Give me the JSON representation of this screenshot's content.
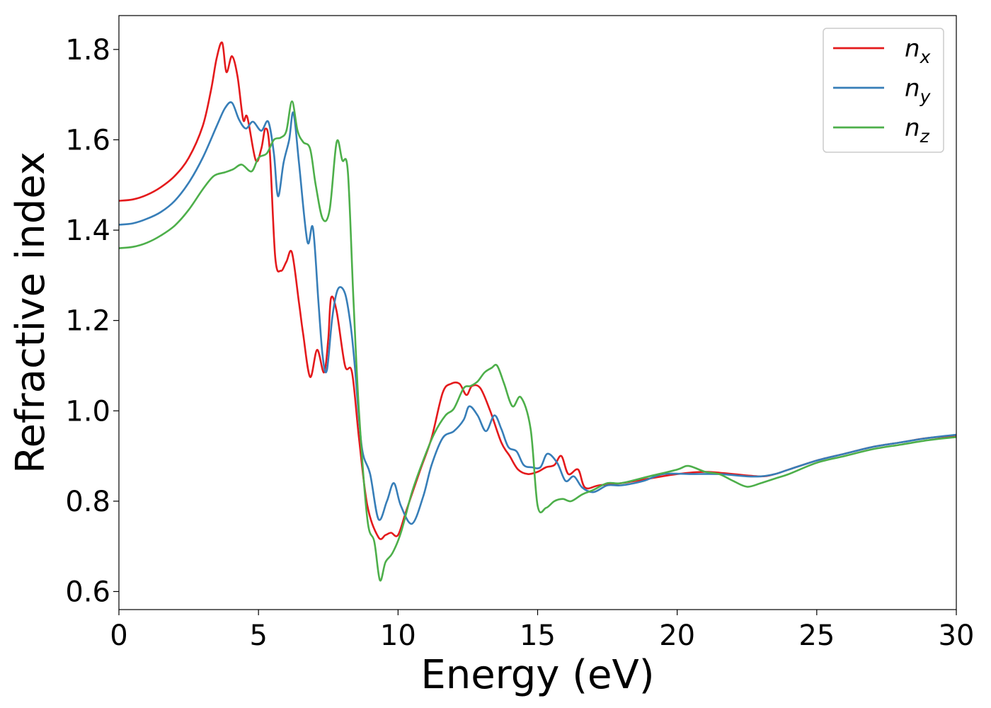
{
  "chart_data": {
    "type": "line",
    "xlabel": "Energy (eV)",
    "ylabel": "Refractive index",
    "xlim": [
      0,
      30
    ],
    "ylim": [
      0.56,
      1.875
    ],
    "xticks": [
      0,
      5,
      10,
      15,
      20,
      25,
      30
    ],
    "yticks": [
      0.6,
      0.8,
      1.0,
      1.2,
      1.4,
      1.6,
      1.8
    ],
    "grid": false,
    "legend_position": "top-right",
    "series": [
      {
        "name": "n_x",
        "label_base": "n",
        "label_sub": "x",
        "color": "#e41a1c",
        "points": [
          [
            0,
            1.465
          ],
          [
            0.5,
            1.468
          ],
          [
            1,
            1.478
          ],
          [
            1.5,
            1.495
          ],
          [
            2,
            1.52
          ],
          [
            2.5,
            1.56
          ],
          [
            3,
            1.63
          ],
          [
            3.3,
            1.71
          ],
          [
            3.5,
            1.78
          ],
          [
            3.7,
            1.815
          ],
          [
            3.85,
            1.75
          ],
          [
            4.05,
            1.785
          ],
          [
            4.25,
            1.74
          ],
          [
            4.45,
            1.645
          ],
          [
            4.6,
            1.65
          ],
          [
            4.9,
            1.555
          ],
          [
            5.1,
            1.58
          ],
          [
            5.25,
            1.625
          ],
          [
            5.4,
            1.58
          ],
          [
            5.6,
            1.34
          ],
          [
            5.8,
            1.31
          ],
          [
            6.0,
            1.33
          ],
          [
            6.2,
            1.35
          ],
          [
            6.45,
            1.24
          ],
          [
            6.6,
            1.17
          ],
          [
            6.85,
            1.075
          ],
          [
            7.1,
            1.135
          ],
          [
            7.35,
            1.085
          ],
          [
            7.5,
            1.16
          ],
          [
            7.6,
            1.25
          ],
          [
            7.8,
            1.22
          ],
          [
            8.1,
            1.1
          ],
          [
            8.35,
            1.085
          ],
          [
            8.6,
            0.94
          ],
          [
            8.9,
            0.79
          ],
          [
            9.3,
            0.72
          ],
          [
            9.55,
            0.725
          ],
          [
            9.75,
            0.73
          ],
          [
            10.0,
            0.725
          ],
          [
            10.3,
            0.78
          ],
          [
            10.8,
            0.87
          ],
          [
            11.2,
            0.94
          ],
          [
            11.6,
            1.04
          ],
          [
            11.9,
            1.06
          ],
          [
            12.2,
            1.06
          ],
          [
            12.45,
            1.035
          ],
          [
            12.65,
            1.055
          ],
          [
            12.95,
            1.05
          ],
          [
            13.3,
            1.0
          ],
          [
            13.7,
            0.93
          ],
          [
            14.0,
            0.9
          ],
          [
            14.3,
            0.87
          ],
          [
            14.65,
            0.86
          ],
          [
            15.0,
            0.865
          ],
          [
            15.3,
            0.875
          ],
          [
            15.6,
            0.88
          ],
          [
            15.85,
            0.9
          ],
          [
            16.1,
            0.86
          ],
          [
            16.45,
            0.87
          ],
          [
            16.7,
            0.83
          ],
          [
            17.2,
            0.835
          ],
          [
            18.0,
            0.84
          ],
          [
            19.0,
            0.85
          ],
          [
            20.0,
            0.86
          ],
          [
            21.0,
            0.865
          ],
          [
            22.0,
            0.86
          ],
          [
            23.0,
            0.855
          ],
          [
            23.5,
            0.86
          ],
          [
            24.0,
            0.87
          ],
          [
            25.0,
            0.89
          ],
          [
            26.0,
            0.905
          ],
          [
            27.0,
            0.92
          ],
          [
            28.0,
            0.93
          ],
          [
            29.0,
            0.94
          ],
          [
            30.0,
            0.945
          ]
        ]
      },
      {
        "name": "n_y",
        "label_base": "n",
        "label_sub": "y",
        "color": "#377eb8",
        "points": [
          [
            0,
            1.412
          ],
          [
            0.5,
            1.415
          ],
          [
            1,
            1.425
          ],
          [
            1.5,
            1.44
          ],
          [
            2,
            1.465
          ],
          [
            2.5,
            1.505
          ],
          [
            3,
            1.56
          ],
          [
            3.5,
            1.63
          ],
          [
            3.8,
            1.67
          ],
          [
            4.05,
            1.682
          ],
          [
            4.3,
            1.645
          ],
          [
            4.55,
            1.625
          ],
          [
            4.8,
            1.64
          ],
          [
            5.1,
            1.62
          ],
          [
            5.35,
            1.64
          ],
          [
            5.55,
            1.57
          ],
          [
            5.7,
            1.475
          ],
          [
            5.9,
            1.55
          ],
          [
            6.1,
            1.6
          ],
          [
            6.25,
            1.66
          ],
          [
            6.45,
            1.55
          ],
          [
            6.75,
            1.375
          ],
          [
            6.95,
            1.405
          ],
          [
            7.15,
            1.24
          ],
          [
            7.3,
            1.12
          ],
          [
            7.45,
            1.09
          ],
          [
            7.65,
            1.21
          ],
          [
            7.85,
            1.27
          ],
          [
            8.1,
            1.26
          ],
          [
            8.3,
            1.19
          ],
          [
            8.45,
            1.1
          ],
          [
            8.7,
            0.92
          ],
          [
            9.0,
            0.86
          ],
          [
            9.3,
            0.76
          ],
          [
            9.6,
            0.8
          ],
          [
            9.85,
            0.84
          ],
          [
            10.1,
            0.79
          ],
          [
            10.5,
            0.75
          ],
          [
            10.9,
            0.81
          ],
          [
            11.2,
            0.88
          ],
          [
            11.6,
            0.94
          ],
          [
            12.0,
            0.955
          ],
          [
            12.35,
            0.98
          ],
          [
            12.55,
            1.01
          ],
          [
            12.85,
            0.99
          ],
          [
            13.15,
            0.955
          ],
          [
            13.45,
            0.99
          ],
          [
            13.7,
            0.96
          ],
          [
            13.95,
            0.92
          ],
          [
            14.25,
            0.91
          ],
          [
            14.5,
            0.88
          ],
          [
            14.8,
            0.875
          ],
          [
            15.1,
            0.875
          ],
          [
            15.35,
            0.905
          ],
          [
            15.7,
            0.885
          ],
          [
            16.0,
            0.845
          ],
          [
            16.3,
            0.855
          ],
          [
            16.6,
            0.83
          ],
          [
            17.0,
            0.82
          ],
          [
            17.5,
            0.835
          ],
          [
            18.0,
            0.835
          ],
          [
            18.8,
            0.845
          ],
          [
            19.5,
            0.86
          ],
          [
            20.5,
            0.86
          ],
          [
            21.5,
            0.86
          ],
          [
            22.5,
            0.855
          ],
          [
            23.0,
            0.855
          ],
          [
            23.5,
            0.86
          ],
          [
            24.0,
            0.87
          ],
          [
            25.0,
            0.89
          ],
          [
            26.0,
            0.905
          ],
          [
            27.0,
            0.92
          ],
          [
            28.0,
            0.93
          ],
          [
            29.0,
            0.94
          ],
          [
            30.0,
            0.947
          ]
        ]
      },
      {
        "name": "n_z",
        "label_base": "n",
        "label_sub": "z",
        "color": "#4daf4a",
        "points": [
          [
            0,
            1.36
          ],
          [
            0.5,
            1.363
          ],
          [
            1,
            1.372
          ],
          [
            1.5,
            1.388
          ],
          [
            2,
            1.41
          ],
          [
            2.5,
            1.445
          ],
          [
            3,
            1.49
          ],
          [
            3.4,
            1.52
          ],
          [
            3.8,
            1.528
          ],
          [
            4.1,
            1.535
          ],
          [
            4.4,
            1.545
          ],
          [
            4.75,
            1.53
          ],
          [
            5.0,
            1.56
          ],
          [
            5.3,
            1.57
          ],
          [
            5.55,
            1.6
          ],
          [
            5.8,
            1.605
          ],
          [
            6.0,
            1.62
          ],
          [
            6.2,
            1.685
          ],
          [
            6.4,
            1.62
          ],
          [
            6.6,
            1.595
          ],
          [
            6.85,
            1.58
          ],
          [
            7.05,
            1.5
          ],
          [
            7.3,
            1.425
          ],
          [
            7.55,
            1.445
          ],
          [
            7.8,
            1.595
          ],
          [
            8.0,
            1.555
          ],
          [
            8.2,
            1.53
          ],
          [
            8.4,
            1.25
          ],
          [
            8.6,
            1.0
          ],
          [
            8.9,
            0.76
          ],
          [
            9.15,
            0.71
          ],
          [
            9.35,
            0.625
          ],
          [
            9.55,
            0.665
          ],
          [
            9.8,
            0.685
          ],
          [
            10.1,
            0.73
          ],
          [
            10.5,
            0.82
          ],
          [
            10.9,
            0.89
          ],
          [
            11.3,
            0.95
          ],
          [
            11.7,
            0.99
          ],
          [
            12.0,
            1.005
          ],
          [
            12.35,
            1.05
          ],
          [
            12.6,
            1.055
          ],
          [
            12.85,
            1.065
          ],
          [
            13.1,
            1.085
          ],
          [
            13.35,
            1.095
          ],
          [
            13.55,
            1.1
          ],
          [
            13.8,
            1.06
          ],
          [
            14.1,
            1.01
          ],
          [
            14.4,
            1.03
          ],
          [
            14.75,
            0.96
          ],
          [
            15.0,
            0.79
          ],
          [
            15.3,
            0.785
          ],
          [
            15.6,
            0.8
          ],
          [
            15.9,
            0.805
          ],
          [
            16.2,
            0.8
          ],
          [
            16.6,
            0.815
          ],
          [
            17.0,
            0.825
          ],
          [
            17.5,
            0.84
          ],
          [
            18.0,
            0.84
          ],
          [
            19.0,
            0.855
          ],
          [
            20.0,
            0.87
          ],
          [
            20.4,
            0.878
          ],
          [
            21.0,
            0.865
          ],
          [
            21.5,
            0.86
          ],
          [
            22.0,
            0.845
          ],
          [
            22.5,
            0.832
          ],
          [
            23.0,
            0.84
          ],
          [
            23.5,
            0.85
          ],
          [
            24.0,
            0.86
          ],
          [
            25.0,
            0.885
          ],
          [
            26.0,
            0.9
          ],
          [
            27.0,
            0.915
          ],
          [
            28.0,
            0.925
          ],
          [
            29.0,
            0.935
          ],
          [
            30.0,
            0.942
          ]
        ]
      }
    ]
  }
}
